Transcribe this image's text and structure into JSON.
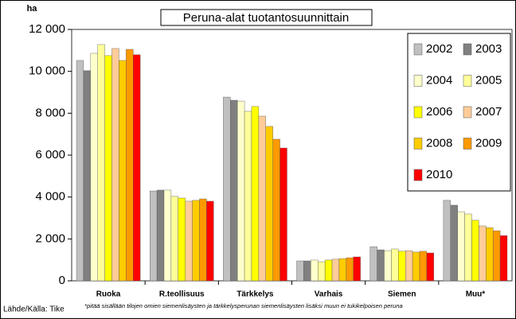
{
  "chart_data": {
    "type": "bar",
    "title": "Peruna-alat tuotantosuunnittain",
    "y_label": "ha",
    "source": "Lähde/Källa: Tike",
    "footnote": "*pitää sisällään tilojen omien siemenlisäysten ja tärkkelysperunan siemenlisäysten lisäksi muun ei tukikelpoisen peruna",
    "categories": [
      "Ruoka",
      "R.teollisuus",
      "Tärkkelys",
      "Varhais",
      "Siemen",
      "Muu*"
    ],
    "series": [
      {
        "name": "2002",
        "color": "#c0c0c0",
        "values": [
          10520,
          4290,
          8770,
          950,
          1630,
          3840
        ]
      },
      {
        "name": "2003",
        "color": "#808080",
        "values": [
          10030,
          4330,
          8620,
          950,
          1480,
          3610
        ]
      },
      {
        "name": "2004",
        "color": "#ffffcc",
        "values": [
          10860,
          4330,
          8580,
          990,
          1440,
          3300
        ]
      },
      {
        "name": "2005",
        "color": "#ffff99",
        "values": [
          11280,
          4030,
          8090,
          910,
          1520,
          3190
        ]
      },
      {
        "name": "2006",
        "color": "#ffff00",
        "values": [
          10750,
          3950,
          8320,
          990,
          1410,
          2890
        ]
      },
      {
        "name": "2007",
        "color": "#ffcc99",
        "values": [
          11090,
          3800,
          7860,
          1030,
          1440,
          2620
        ]
      },
      {
        "name": "2008",
        "color": "#ffcc00",
        "values": [
          10520,
          3840,
          7370,
          1060,
          1370,
          2540
        ]
      },
      {
        "name": "2009",
        "color": "#ff9900",
        "values": [
          11050,
          3910,
          6760,
          1100,
          1410,
          2390
        ]
      },
      {
        "name": "2010",
        "color": "#ff0000",
        "values": [
          10790,
          3800,
          6340,
          1140,
          1330,
          2160
        ]
      }
    ],
    "ylim": [
      0,
      12000
    ],
    "yticks": [
      0,
      {
        "value": 2000,
        "label": "2 000"
      },
      {
        "value": 4000,
        "label": "4 000"
      },
      {
        "value": 6000,
        "label": "6 000"
      },
      {
        "value": 8000,
        "label": "8 000"
      },
      {
        "value": 10000,
        "label": "10 000"
      },
      {
        "value": 12000,
        "label": "12 000"
      }
    ],
    "legend": "top-right",
    "grid": false
  }
}
